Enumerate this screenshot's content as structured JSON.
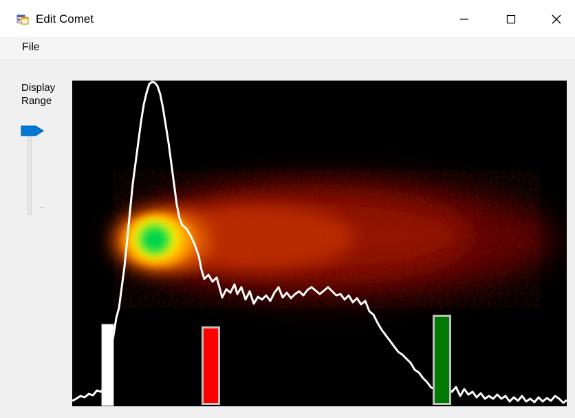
{
  "window": {
    "title": "Edit Comet",
    "icons": {
      "app": "app-icon",
      "minimize": "minimize-icon",
      "maximize": "maximize-icon",
      "close": "close-icon"
    }
  },
  "menu": {
    "items": [
      "File"
    ]
  },
  "controls": {
    "display_range_label_line1": "Display",
    "display_range_label_line2": "Range",
    "slider": {
      "value_fraction": 1.0
    }
  },
  "comet_view": {
    "markers": [
      {
        "name": "white-marker",
        "color": "#ffffff"
      },
      {
        "name": "red-marker",
        "color": "#ff0000"
      },
      {
        "name": "green-marker",
        "color": "#007a00"
      }
    ],
    "colors": {
      "background": "#000000",
      "profile_line": "#ffffff",
      "head_core": "#00d44a",
      "head_glow": "#ffd800",
      "tail": "#b01a00"
    }
  }
}
